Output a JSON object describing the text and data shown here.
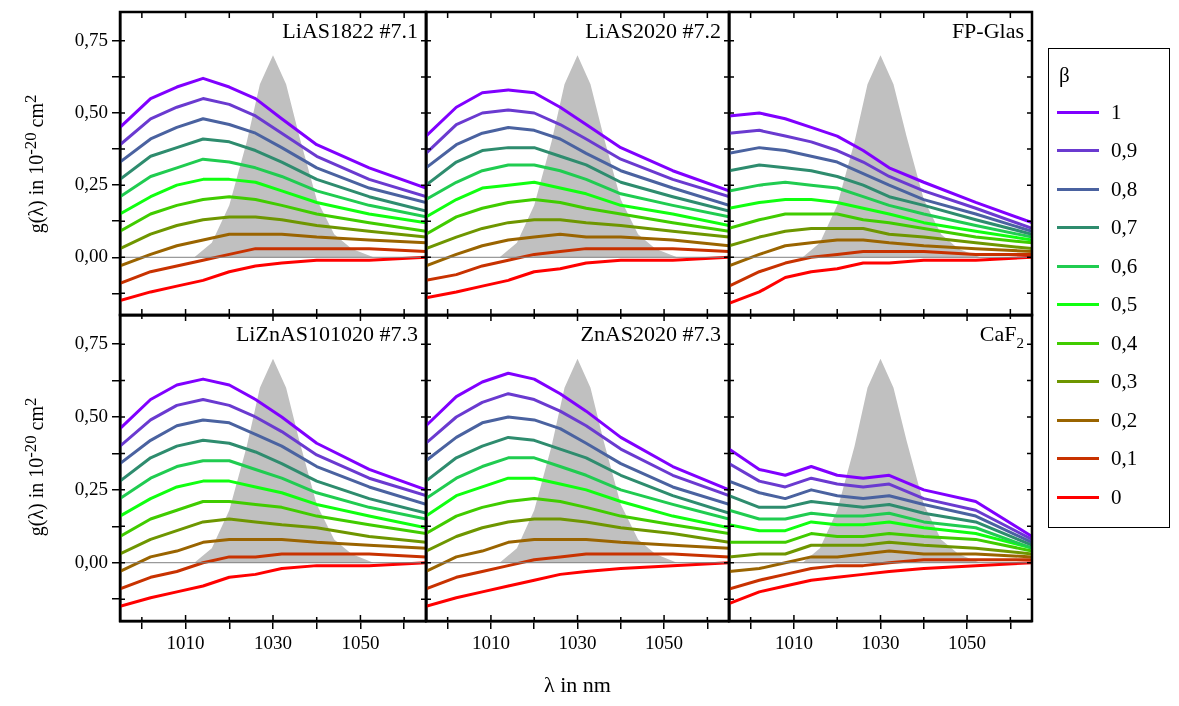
{
  "chart_data": [
    {
      "type": "line",
      "title": "LiAS1822 #7.1",
      "ylabel": "g(λ) in 10$^{-20}$ cm$^{2}$",
      "tick_labels": "y",
      "xlim": [
        995,
        1065
      ],
      "ylim": [
        -0.2,
        0.85
      ],
      "xticks": [
        {
          "value": 1000,
          "label": null
        },
        {
          "value": 1010,
          "label": null
        },
        {
          "value": 1020,
          "label": null
        },
        {
          "value": 1030,
          "label": null
        },
        {
          "value": 1040,
          "label": null
        },
        {
          "value": 1050,
          "label": null
        },
        {
          "value": 1060,
          "label": null
        }
      ],
      "yticks": [
        {
          "value": -0.125,
          "label": null
        },
        {
          "value": 0,
          "label": "0,00"
        },
        {
          "value": 0.125,
          "label": null
        },
        {
          "value": 0.25,
          "label": "0,25"
        },
        {
          "value": 0.375,
          "label": null
        },
        {
          "value": 0.5,
          "label": "0,50"
        },
        {
          "value": 0.625,
          "label": null
        },
        {
          "value": 0.75,
          "label": "0,75"
        }
      ],
      "ref_lines": [
        {
          "axis": "y",
          "value": 0,
          "color": "#808080"
        }
      ],
      "x": [
        995,
        1002,
        1008,
        1014,
        1020,
        1026,
        1032,
        1040,
        1052,
        1065
      ],
      "series": [
        {
          "type": "area",
          "color": "#c0c0c0",
          "x": [
            1012,
            1016,
            1020,
            1024,
            1027,
            1030,
            1033,
            1036,
            1040,
            1044,
            1048,
            1053
          ],
          "values": [
            0,
            0.05,
            0.18,
            0.4,
            0.6,
            0.7,
            0.6,
            0.42,
            0.2,
            0.08,
            0.03,
            0
          ]
        },
        {
          "color": "#8000ff",
          "values": [
            0.45,
            0.55,
            0.59,
            0.62,
            0.59,
            0.55,
            0.48,
            0.39,
            0.31,
            0.24
          ]
        },
        {
          "color": "#6a3ad0",
          "values": [
            0.39,
            0.48,
            0.52,
            0.55,
            0.53,
            0.49,
            0.43,
            0.35,
            0.27,
            0.21
          ]
        },
        {
          "color": "#4a62a0",
          "values": [
            0.33,
            0.41,
            0.45,
            0.48,
            0.46,
            0.43,
            0.38,
            0.31,
            0.24,
            0.19
          ]
        },
        {
          "color": "#2e8c6e",
          "values": [
            0.27,
            0.35,
            0.38,
            0.41,
            0.4,
            0.37,
            0.33,
            0.27,
            0.21,
            0.16
          ]
        },
        {
          "color": "#20cc50",
          "values": [
            0.21,
            0.28,
            0.31,
            0.34,
            0.33,
            0.31,
            0.28,
            0.23,
            0.18,
            0.14
          ]
        },
        {
          "color": "#10ff10",
          "values": [
            0.15,
            0.21,
            0.25,
            0.27,
            0.27,
            0.26,
            0.23,
            0.19,
            0.15,
            0.12
          ]
        },
        {
          "color": "#40cc00",
          "values": [
            0.09,
            0.15,
            0.18,
            0.2,
            0.21,
            0.2,
            0.18,
            0.15,
            0.12,
            0.09
          ]
        },
        {
          "color": "#6e9600",
          "values": [
            0.03,
            0.08,
            0.11,
            0.13,
            0.14,
            0.14,
            0.13,
            0.11,
            0.09,
            0.07
          ]
        },
        {
          "color": "#9a6400",
          "values": [
            -0.03,
            0.01,
            0.04,
            0.06,
            0.08,
            0.08,
            0.08,
            0.07,
            0.06,
            0.05
          ]
        },
        {
          "color": "#c83200",
          "values": [
            -0.09,
            -0.05,
            -0.03,
            -0.01,
            0.01,
            0.03,
            0.03,
            0.03,
            0.03,
            0.02
          ]
        },
        {
          "color": "#ff0000",
          "values": [
            -0.15,
            -0.12,
            -0.1,
            -0.08,
            -0.05,
            -0.03,
            -0.02,
            -0.01,
            -0.01,
            0
          ]
        }
      ]
    },
    {
      "type": "line",
      "title": "LiAS2020 #7.2",
      "tick_labels": false,
      "xlim": [
        995,
        1065
      ],
      "ylim": [
        -0.2,
        0.85
      ],
      "xticks": [
        {
          "value": 1000,
          "label": null
        },
        {
          "value": 1010,
          "label": null
        },
        {
          "value": 1020,
          "label": null
        },
        {
          "value": 1030,
          "label": null
        },
        {
          "value": 1040,
          "label": null
        },
        {
          "value": 1050,
          "label": null
        },
        {
          "value": 1060,
          "label": null
        }
      ],
      "yticks": [
        {
          "value": -0.125,
          "label": null
        },
        {
          "value": 0,
          "label": null
        },
        {
          "value": 0.125,
          "label": null
        },
        {
          "value": 0.25,
          "label": null
        },
        {
          "value": 0.375,
          "label": null
        },
        {
          "value": 0.5,
          "label": null
        },
        {
          "value": 0.625,
          "label": null
        },
        {
          "value": 0.75,
          "label": null
        }
      ],
      "ref_lines": [
        {
          "axis": "y",
          "value": 0,
          "color": "#808080"
        }
      ],
      "x": [
        995,
        1002,
        1008,
        1014,
        1020,
        1026,
        1032,
        1040,
        1052,
        1065
      ],
      "series": [
        {
          "type": "area",
          "color": "#c0c0c0",
          "x": [
            1012,
            1016,
            1020,
            1024,
            1027,
            1030,
            1033,
            1036,
            1040,
            1044,
            1048,
            1053
          ],
          "values": [
            0,
            0.05,
            0.18,
            0.4,
            0.6,
            0.7,
            0.6,
            0.42,
            0.2,
            0.08,
            0.03,
            0
          ]
        },
        {
          "color": "#8000ff",
          "values": [
            0.42,
            0.52,
            0.57,
            0.58,
            0.57,
            0.52,
            0.46,
            0.38,
            0.3,
            0.23
          ]
        },
        {
          "color": "#6a3ad0",
          "values": [
            0.36,
            0.46,
            0.5,
            0.51,
            0.5,
            0.46,
            0.41,
            0.34,
            0.27,
            0.21
          ]
        },
        {
          "color": "#4a62a0",
          "values": [
            0.31,
            0.39,
            0.43,
            0.45,
            0.44,
            0.41,
            0.36,
            0.3,
            0.24,
            0.18
          ]
        },
        {
          "color": "#2e8c6e",
          "values": [
            0.25,
            0.33,
            0.37,
            0.38,
            0.38,
            0.35,
            0.32,
            0.26,
            0.21,
            0.16
          ]
        },
        {
          "color": "#20cc50",
          "values": [
            0.2,
            0.26,
            0.3,
            0.32,
            0.32,
            0.3,
            0.27,
            0.22,
            0.18,
            0.14
          ]
        },
        {
          "color": "#10ff10",
          "values": [
            0.14,
            0.2,
            0.24,
            0.25,
            0.26,
            0.24,
            0.22,
            0.18,
            0.15,
            0.11
          ]
        },
        {
          "color": "#40cc00",
          "values": [
            0.08,
            0.14,
            0.17,
            0.19,
            0.2,
            0.19,
            0.17,
            0.15,
            0.12,
            0.09
          ]
        },
        {
          "color": "#6e9600",
          "values": [
            0.03,
            0.07,
            0.1,
            0.12,
            0.13,
            0.13,
            0.12,
            0.11,
            0.09,
            0.07
          ]
        },
        {
          "color": "#9a6400",
          "values": [
            -0.03,
            0.01,
            0.04,
            0.06,
            0.07,
            0.08,
            0.07,
            0.07,
            0.06,
            0.04
          ]
        },
        {
          "color": "#c83200",
          "values": [
            -0.08,
            -0.06,
            -0.03,
            -0.01,
            0.01,
            0.02,
            0.03,
            0.03,
            0.03,
            0.02
          ]
        },
        {
          "color": "#ff0000",
          "values": [
            -0.14,
            -0.12,
            -0.1,
            -0.08,
            -0.05,
            -0.04,
            -0.02,
            -0.01,
            -0.01,
            0
          ]
        }
      ]
    },
    {
      "type": "line",
      "title": "FP-Glas",
      "tick_labels": false,
      "legend": "right",
      "legend_title": "β",
      "xlim": [
        995,
        1065
      ],
      "ylim": [
        -0.2,
        0.85
      ],
      "xticks": [
        {
          "value": 1000,
          "label": null
        },
        {
          "value": 1010,
          "label": null
        },
        {
          "value": 1020,
          "label": null
        },
        {
          "value": 1030,
          "label": null
        },
        {
          "value": 1040,
          "label": null
        },
        {
          "value": 1050,
          "label": null
        },
        {
          "value": 1060,
          "label": null
        }
      ],
      "yticks": [
        {
          "value": -0.125,
          "label": null
        },
        {
          "value": 0,
          "label": null
        },
        {
          "value": 0.125,
          "label": null
        },
        {
          "value": 0.25,
          "label": null
        },
        {
          "value": 0.375,
          "label": null
        },
        {
          "value": 0.5,
          "label": null
        },
        {
          "value": 0.625,
          "label": null
        },
        {
          "value": 0.75,
          "label": null
        }
      ],
      "ref_lines": [
        {
          "axis": "y",
          "value": 0,
          "color": "#808080"
        }
      ],
      "x": [
        995,
        1002,
        1008,
        1014,
        1020,
        1026,
        1032,
        1040,
        1052,
        1065
      ],
      "series": [
        {
          "type": "area",
          "color": "#c0c0c0",
          "x": [
            1012,
            1016,
            1020,
            1024,
            1027,
            1030,
            1033,
            1036,
            1040,
            1044,
            1048,
            1053
          ],
          "values": [
            0,
            0.05,
            0.18,
            0.4,
            0.6,
            0.7,
            0.6,
            0.42,
            0.2,
            0.08,
            0.03,
            0
          ]
        },
        {
          "name": "1",
          "color": "#8000ff",
          "values": [
            0.49,
            0.5,
            0.48,
            0.45,
            0.42,
            0.37,
            0.31,
            0.26,
            0.19,
            0.12
          ]
        },
        {
          "name": "0,9",
          "color": "#6a3ad0",
          "values": [
            0.43,
            0.44,
            0.42,
            0.4,
            0.37,
            0.33,
            0.28,
            0.23,
            0.17,
            0.1
          ]
        },
        {
          "name": "0,8",
          "color": "#4a62a0",
          "values": [
            0.36,
            0.38,
            0.37,
            0.35,
            0.33,
            0.29,
            0.25,
            0.2,
            0.15,
            0.09
          ]
        },
        {
          "name": "0,7",
          "color": "#2e8c6e",
          "values": [
            0.3,
            0.32,
            0.31,
            0.3,
            0.28,
            0.25,
            0.21,
            0.18,
            0.13,
            0.08
          ]
        },
        {
          "name": "0,6",
          "color": "#20cc50",
          "values": [
            0.23,
            0.25,
            0.26,
            0.25,
            0.24,
            0.21,
            0.18,
            0.15,
            0.11,
            0.07
          ]
        },
        {
          "name": "0,5",
          "color": "#10ff10",
          "values": [
            0.17,
            0.19,
            0.2,
            0.2,
            0.19,
            0.17,
            0.15,
            0.12,
            0.09,
            0.06
          ]
        },
        {
          "name": "0,4",
          "color": "#40cc00",
          "values": [
            0.1,
            0.13,
            0.15,
            0.15,
            0.15,
            0.13,
            0.12,
            0.1,
            0.07,
            0.05
          ]
        },
        {
          "name": "0,3",
          "color": "#6e9600",
          "values": [
            0.04,
            0.07,
            0.09,
            0.1,
            0.1,
            0.1,
            0.08,
            0.07,
            0.05,
            0.03
          ]
        },
        {
          "name": "0,2",
          "color": "#9a6400",
          "values": [
            -0.03,
            0.01,
            0.04,
            0.05,
            0.06,
            0.06,
            0.05,
            0.04,
            0.03,
            0.02
          ]
        },
        {
          "name": "0,1",
          "color": "#c83200",
          "values": [
            -0.1,
            -0.05,
            -0.02,
            0,
            0.01,
            0.02,
            0.02,
            0.02,
            0.01,
            0.01
          ]
        },
        {
          "name": "0",
          "color": "#ff0000",
          "values": [
            -0.16,
            -0.12,
            -0.07,
            -0.05,
            -0.04,
            -0.02,
            -0.02,
            -0.01,
            -0.01,
            0
          ]
        }
      ]
    },
    {
      "type": "line",
      "title": "LiZnAS101020 #7.3",
      "ylabel": "g(λ) in 10$^{-20}$ cm$^{2}$",
      "xlim": [
        995,
        1065
      ],
      "ylim": [
        -0.2,
        0.85
      ],
      "xticks": [
        {
          "value": 1000,
          "label": null
        },
        1010,
        {
          "value": 1020,
          "label": null
        },
        1030,
        {
          "value": 1040,
          "label": null
        },
        1050,
        {
          "value": 1060,
          "label": null
        }
      ],
      "yticks": [
        {
          "value": -0.125,
          "label": null
        },
        {
          "value": 0,
          "label": "0,00"
        },
        {
          "value": 0.125,
          "label": null
        },
        {
          "value": 0.25,
          "label": "0,25"
        },
        {
          "value": 0.375,
          "label": null
        },
        {
          "value": 0.5,
          "label": "0,50"
        },
        {
          "value": 0.625,
          "label": null
        },
        {
          "value": 0.75,
          "label": "0,75"
        }
      ],
      "ref_lines": [
        {
          "axis": "y",
          "value": 0,
          "color": "#808080"
        }
      ],
      "x": [
        995,
        1002,
        1008,
        1014,
        1020,
        1026,
        1032,
        1040,
        1052,
        1065
      ],
      "series": [
        {
          "type": "area",
          "color": "#c0c0c0",
          "x": [
            1012,
            1016,
            1020,
            1024,
            1027,
            1030,
            1033,
            1036,
            1040,
            1044,
            1048,
            1053
          ],
          "values": [
            0,
            0.05,
            0.18,
            0.4,
            0.6,
            0.7,
            0.6,
            0.42,
            0.2,
            0.08,
            0.03,
            0
          ]
        },
        {
          "color": "#8000ff",
          "values": [
            0.46,
            0.56,
            0.61,
            0.63,
            0.61,
            0.56,
            0.5,
            0.41,
            0.32,
            0.25
          ]
        },
        {
          "color": "#6a3ad0",
          "values": [
            0.4,
            0.49,
            0.54,
            0.56,
            0.54,
            0.5,
            0.45,
            0.37,
            0.29,
            0.23
          ]
        },
        {
          "color": "#4a62a0",
          "values": [
            0.34,
            0.42,
            0.47,
            0.49,
            0.48,
            0.44,
            0.4,
            0.33,
            0.26,
            0.2
          ]
        },
        {
          "color": "#2e8c6e",
          "values": [
            0.28,
            0.36,
            0.4,
            0.42,
            0.41,
            0.38,
            0.34,
            0.28,
            0.22,
            0.17
          ]
        },
        {
          "color": "#20cc50",
          "values": [
            0.22,
            0.29,
            0.33,
            0.35,
            0.35,
            0.32,
            0.29,
            0.24,
            0.19,
            0.15
          ]
        },
        {
          "color": "#10ff10",
          "values": [
            0.16,
            0.22,
            0.26,
            0.28,
            0.28,
            0.26,
            0.24,
            0.2,
            0.16,
            0.12
          ]
        },
        {
          "color": "#40cc00",
          "values": [
            0.09,
            0.15,
            0.18,
            0.21,
            0.21,
            0.2,
            0.19,
            0.16,
            0.13,
            0.1
          ]
        },
        {
          "color": "#6e9600",
          "values": [
            0.03,
            0.08,
            0.11,
            0.14,
            0.15,
            0.14,
            0.13,
            0.12,
            0.09,
            0.07
          ]
        },
        {
          "color": "#9a6400",
          "values": [
            -0.03,
            0.02,
            0.04,
            0.07,
            0.08,
            0.08,
            0.08,
            0.07,
            0.06,
            0.05
          ]
        },
        {
          "color": "#c83200",
          "values": [
            -0.09,
            -0.05,
            -0.03,
            0,
            0.02,
            0.02,
            0.03,
            0.03,
            0.03,
            0.02
          ]
        },
        {
          "color": "#ff0000",
          "values": [
            -0.15,
            -0.12,
            -0.1,
            -0.08,
            -0.05,
            -0.04,
            -0.02,
            -0.01,
            -0.01,
            0
          ]
        }
      ]
    },
    {
      "type": "line",
      "title": "ZnAS2020 #7.3",
      "xlabel": "λ in nm",
      "tick_labels": "x",
      "xlim": [
        995,
        1065
      ],
      "ylim": [
        -0.2,
        0.85
      ],
      "xticks": [
        {
          "value": 1000,
          "label": null
        },
        1010,
        {
          "value": 1020,
          "label": null
        },
        1030,
        {
          "value": 1040,
          "label": null
        },
        1050,
        {
          "value": 1060,
          "label": null
        }
      ],
      "yticks": [
        {
          "value": -0.125,
          "label": null
        },
        {
          "value": 0,
          "label": null
        },
        {
          "value": 0.125,
          "label": null
        },
        {
          "value": 0.25,
          "label": null
        },
        {
          "value": 0.375,
          "label": null
        },
        {
          "value": 0.5,
          "label": null
        },
        {
          "value": 0.625,
          "label": null
        },
        {
          "value": 0.75,
          "label": null
        }
      ],
      "ref_lines": [
        {
          "axis": "y",
          "value": 0,
          "color": "#808080"
        }
      ],
      "x": [
        995,
        1002,
        1008,
        1014,
        1020,
        1026,
        1032,
        1040,
        1052,
        1065
      ],
      "series": [
        {
          "type": "area",
          "color": "#c0c0c0",
          "x": [
            1012,
            1016,
            1020,
            1024,
            1027,
            1030,
            1033,
            1036,
            1040,
            1044,
            1048,
            1053
          ],
          "values": [
            0,
            0.05,
            0.18,
            0.4,
            0.6,
            0.7,
            0.6,
            0.42,
            0.2,
            0.08,
            0.03,
            0
          ]
        },
        {
          "color": "#8000ff",
          "values": [
            0.47,
            0.57,
            0.62,
            0.65,
            0.63,
            0.58,
            0.52,
            0.43,
            0.33,
            0.25
          ]
        },
        {
          "color": "#6a3ad0",
          "values": [
            0.41,
            0.5,
            0.55,
            0.58,
            0.56,
            0.52,
            0.47,
            0.39,
            0.3,
            0.23
          ]
        },
        {
          "color": "#4a62a0",
          "values": [
            0.35,
            0.43,
            0.48,
            0.5,
            0.49,
            0.46,
            0.41,
            0.34,
            0.26,
            0.2
          ]
        },
        {
          "color": "#2e8c6e",
          "values": [
            0.28,
            0.36,
            0.4,
            0.43,
            0.42,
            0.39,
            0.36,
            0.3,
            0.23,
            0.17
          ]
        },
        {
          "color": "#20cc50",
          "values": [
            0.22,
            0.29,
            0.33,
            0.36,
            0.36,
            0.33,
            0.3,
            0.25,
            0.2,
            0.15
          ]
        },
        {
          "color": "#10ff10",
          "values": [
            0.16,
            0.23,
            0.26,
            0.29,
            0.29,
            0.27,
            0.25,
            0.21,
            0.16,
            0.12
          ]
        },
        {
          "color": "#40cc00",
          "values": [
            0.1,
            0.16,
            0.19,
            0.21,
            0.22,
            0.21,
            0.19,
            0.16,
            0.13,
            0.1
          ]
        },
        {
          "color": "#6e9600",
          "values": [
            0.04,
            0.09,
            0.12,
            0.14,
            0.15,
            0.15,
            0.14,
            0.12,
            0.1,
            0.07
          ]
        },
        {
          "color": "#9a6400",
          "values": [
            -0.03,
            0.02,
            0.04,
            0.07,
            0.08,
            0.08,
            0.08,
            0.07,
            0.06,
            0.05
          ]
        },
        {
          "color": "#c83200",
          "values": [
            -0.09,
            -0.05,
            -0.03,
            -0.01,
            0.01,
            0.02,
            0.03,
            0.03,
            0.03,
            0.02
          ]
        },
        {
          "color": "#ff0000",
          "values": [
            -0.15,
            -0.12,
            -0.1,
            -0.08,
            -0.06,
            -0.04,
            -0.03,
            -0.02,
            -0.01,
            0
          ]
        }
      ]
    },
    {
      "type": "line",
      "title": "CaF$_{2}$",
      "tick_labels": "x",
      "xlim": [
        995,
        1065
      ],
      "ylim": [
        -0.2,
        0.85
      ],
      "xticks": [
        {
          "value": 1000,
          "label": null
        },
        1010,
        {
          "value": 1020,
          "label": null
        },
        1030,
        {
          "value": 1040,
          "label": null
        },
        1050,
        {
          "value": 1060,
          "label": null
        }
      ],
      "yticks": [
        {
          "value": -0.125,
          "label": null
        },
        {
          "value": 0,
          "label": null
        },
        {
          "value": 0.125,
          "label": null
        },
        {
          "value": 0.25,
          "label": null
        },
        {
          "value": 0.375,
          "label": null
        },
        {
          "value": 0.5,
          "label": null
        },
        {
          "value": 0.625,
          "label": null
        },
        {
          "value": 0.75,
          "label": null
        }
      ],
      "ref_lines": [
        {
          "axis": "y",
          "value": 0,
          "color": "#808080"
        }
      ],
      "x": [
        995,
        1002,
        1008,
        1014,
        1020,
        1026,
        1032,
        1040,
        1052,
        1065
      ],
      "series": [
        {
          "type": "area",
          "color": "#c0c0c0",
          "x": [
            1012,
            1016,
            1020,
            1024,
            1027,
            1030,
            1033,
            1036,
            1040,
            1044,
            1048,
            1053
          ],
          "values": [
            0,
            0.05,
            0.18,
            0.4,
            0.6,
            0.7,
            0.6,
            0.42,
            0.2,
            0.08,
            0.03,
            0
          ]
        },
        {
          "color": "#8000ff",
          "values": [
            0.39,
            0.32,
            0.3,
            0.33,
            0.3,
            0.29,
            0.3,
            0.25,
            0.21,
            0.09
          ]
        },
        {
          "color": "#6a3ad0",
          "values": [
            0.34,
            0.28,
            0.26,
            0.29,
            0.27,
            0.26,
            0.27,
            0.22,
            0.18,
            0.08
          ]
        },
        {
          "color": "#4a62a0",
          "values": [
            0.28,
            0.24,
            0.22,
            0.25,
            0.23,
            0.22,
            0.23,
            0.2,
            0.16,
            0.07
          ]
        },
        {
          "color": "#2e8c6e",
          "values": [
            0.23,
            0.19,
            0.19,
            0.21,
            0.2,
            0.19,
            0.2,
            0.17,
            0.14,
            0.06
          ]
        },
        {
          "color": "#20cc50",
          "values": [
            0.18,
            0.15,
            0.15,
            0.17,
            0.16,
            0.16,
            0.17,
            0.14,
            0.12,
            0.05
          ]
        },
        {
          "color": "#10ff10",
          "values": [
            0.13,
            0.11,
            0.11,
            0.14,
            0.13,
            0.13,
            0.14,
            0.12,
            0.1,
            0.05
          ]
        },
        {
          "color": "#40cc00",
          "values": [
            0.07,
            0.07,
            0.07,
            0.1,
            0.09,
            0.09,
            0.1,
            0.09,
            0.08,
            0.04
          ]
        },
        {
          "color": "#6e9600",
          "values": [
            0.02,
            0.03,
            0.03,
            0.06,
            0.06,
            0.06,
            0.07,
            0.06,
            0.05,
            0.03
          ]
        },
        {
          "color": "#9a6400",
          "values": [
            -0.03,
            -0.02,
            0,
            0.02,
            0.02,
            0.03,
            0.04,
            0.03,
            0.03,
            0.02
          ]
        },
        {
          "color": "#c83200",
          "values": [
            -0.09,
            -0.06,
            -0.04,
            -0.02,
            -0.01,
            -0.01,
            0,
            0.01,
            0.01,
            0.01
          ]
        },
        {
          "color": "#ff0000",
          "values": [
            -0.14,
            -0.1,
            -0.08,
            -0.06,
            -0.05,
            -0.04,
            -0.03,
            -0.02,
            -0.01,
            0
          ]
        }
      ]
    }
  ]
}
